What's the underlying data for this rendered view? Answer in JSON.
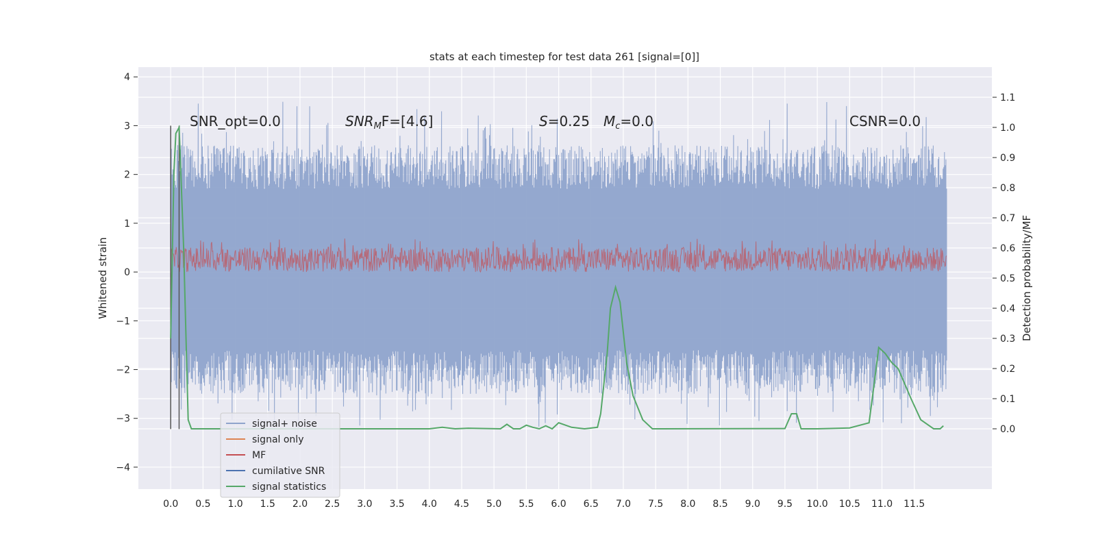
{
  "chart_data": {
    "type": "line",
    "title": "stats at each timestep for test data 261 [signal=[0]]",
    "xlabel": "",
    "ylabel": "Whitened strain",
    "y2label": "Detection probability/MF",
    "xlim": [
      -0.5,
      12.7
    ],
    "ylim": [
      -4.45,
      4.2
    ],
    "y2lim": [
      -0.2,
      1.2
    ],
    "grid": true,
    "x_ticks": [
      "0.0",
      "0.5",
      "1.0",
      "1.5",
      "2.0",
      "2.5",
      "3.0",
      "3.5",
      "4.0",
      "4.5",
      "5.0",
      "5.5",
      "6.0",
      "6.5",
      "7.0",
      "7.5",
      "8.0",
      "8.5",
      "9.0",
      "9.5",
      "10.0",
      "10.5",
      "11.0",
      "11.5"
    ],
    "y_ticks": [
      "4",
      "3",
      "2",
      "1",
      "0",
      "−1",
      "−2",
      "−3",
      "−4"
    ],
    "y2_ticks": [
      "1.1",
      "1.0",
      "0.9",
      "0.8",
      "0.7",
      "0.6",
      "0.5",
      "0.4",
      "0.3",
      "0.2",
      "0.1",
      "0.0"
    ],
    "annotations": {
      "snr_opt": "SNR_opt=0.0",
      "snr_mf_var": "SNR",
      "snr_mf_sub": "M",
      "snr_mf_rest": "F=[4.6]",
      "s_var": "S",
      "s_rest": "=0.25",
      "mc_var": "M",
      "mc_sub": "c",
      "mc_rest": "=0.0",
      "csnr": "CSNR=0.0"
    },
    "vlines": [
      0.0,
      0.13
    ],
    "series": [
      {
        "name": "signal+ noise",
        "color": "#8fa4cc",
        "kind": "noise",
        "x_range": [
          0.0,
          12.0
        ],
        "envelope": [
          -3.2,
          3.5
        ]
      },
      {
        "name": "signal only",
        "color": "#dd8452",
        "kind": "flat"
      },
      {
        "name": "MF",
        "color": "#c44e52",
        "kind": "mf",
        "x_range": [
          0.0,
          12.0
        ],
        "envelope": [
          0.0,
          0.6
        ]
      },
      {
        "name": "cumilative SNR",
        "color": "#4c72b0",
        "kind": "none"
      },
      {
        "name": "signal statistics",
        "color": "#55a868",
        "kind": "line",
        "axis": "y2",
        "x": [
          0.0,
          0.05,
          0.08,
          0.13,
          0.2,
          0.27,
          0.32,
          4.0,
          4.2,
          4.4,
          4.6,
          5.1,
          5.2,
          5.3,
          5.4,
          5.5,
          5.6,
          5.7,
          5.8,
          5.9,
          6.0,
          6.2,
          6.4,
          6.6,
          6.65,
          6.75,
          6.8,
          6.88,
          6.95,
          7.05,
          7.15,
          7.3,
          7.45,
          7.6,
          9.5,
          9.6,
          9.68,
          9.75,
          9.85,
          10.0,
          10.5,
          10.8,
          10.88,
          10.95,
          11.05,
          11.15,
          11.25,
          11.35,
          11.45,
          11.6,
          11.8,
          11.9,
          11.95
        ],
        "y": [
          0.3,
          0.85,
          0.98,
          1.0,
          0.6,
          0.03,
          0.0,
          0.0,
          0.005,
          0.0,
          0.002,
          0.0,
          0.015,
          0.0,
          0.0,
          0.012,
          0.005,
          0.0,
          0.01,
          0.0,
          0.02,
          0.005,
          0.0,
          0.005,
          0.05,
          0.25,
          0.4,
          0.47,
          0.42,
          0.22,
          0.11,
          0.03,
          0.0,
          0.0,
          0.001,
          0.05,
          0.05,
          0.0,
          0.0,
          0.0,
          0.003,
          0.02,
          0.15,
          0.27,
          0.25,
          0.22,
          0.2,
          0.15,
          0.1,
          0.03,
          0.0,
          0.0,
          0.01
        ]
      }
    ],
    "legend_position": "lower-left"
  }
}
